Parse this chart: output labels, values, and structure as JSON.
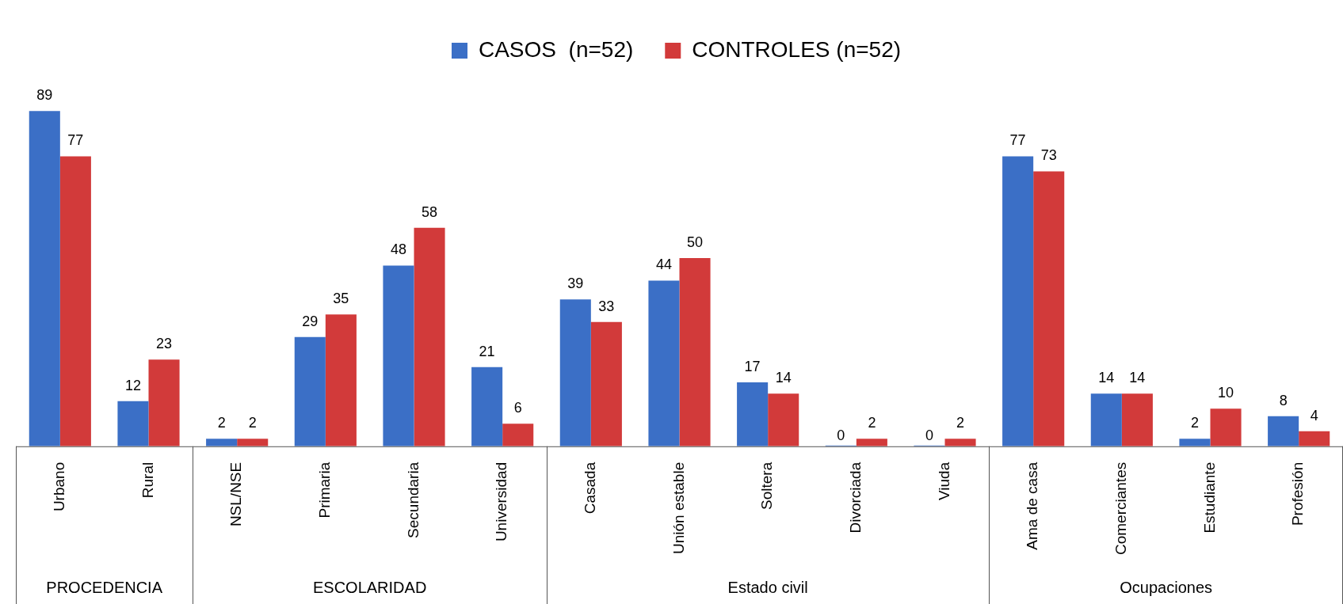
{
  "chart_data": {
    "type": "bar",
    "relative": false,
    "data_labels": true,
    "legend": "top",
    "categories": [
      "Urbano",
      "Rural",
      "NSL/NSE",
      "Primaria",
      "Secundaria",
      "Universidad",
      "Casada",
      "Unión estable",
      "Soltera",
      "Divorciada",
      "Viuda",
      "Ama de casa",
      "Comerciantes",
      "Estudiante",
      "Profesión"
    ],
    "series": [
      {
        "name": "CASOS  (n=52)",
        "color": "#3b6fc6",
        "values": [
          89,
          12,
          2,
          29,
          48,
          21,
          39,
          44,
          17,
          0,
          0,
          77,
          14,
          2,
          8
        ]
      },
      {
        "name": "CONTROLES (n=52)",
        "color": "#d23a3a",
        "values": [
          77,
          23,
          2,
          35,
          58,
          6,
          33,
          50,
          14,
          2,
          2,
          73,
          14,
          10,
          4
        ]
      }
    ],
    "annotations": [
      "PROCEDENCIA",
      "ESCOLARIDAD",
      "Estado civil",
      "Ocupaciones"
    ]
  }
}
